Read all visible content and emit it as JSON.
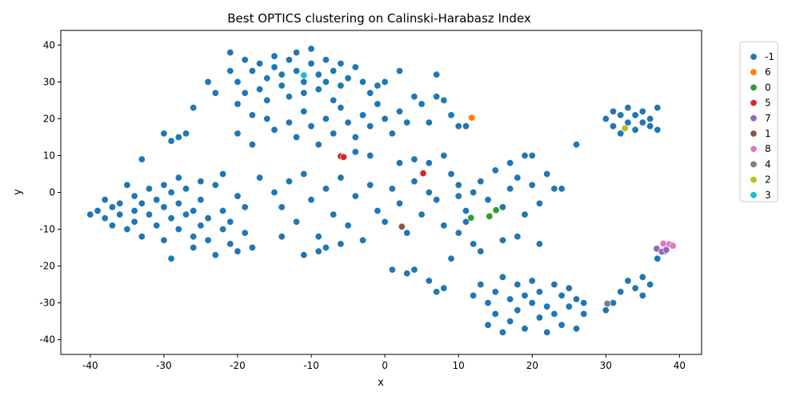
{
  "chart_data": {
    "type": "scatter",
    "title": "Best OPTICS clustering on Calinski-Harabasz Index",
    "xlabel": "x",
    "ylabel": "y",
    "xlim": [
      -44,
      43
    ],
    "ylim": [
      -44,
      44
    ],
    "xticks": [
      -40,
      -30,
      -20,
      -10,
      0,
      10,
      20,
      30,
      40
    ],
    "yticks": [
      -40,
      -30,
      -20,
      -10,
      0,
      10,
      20,
      30,
      40
    ],
    "grid": false,
    "legend_position": "upper-right-outside",
    "series": [
      {
        "name": "-1",
        "color": "#1f77b4",
        "points": [
          [
            -40,
            -6
          ],
          [
            -39,
            -5
          ],
          [
            -38,
            -2
          ],
          [
            -38,
            -7
          ],
          [
            -37,
            -4
          ],
          [
            -37,
            -9
          ],
          [
            -36,
            -3
          ],
          [
            -36,
            -6
          ],
          [
            -35,
            -10
          ],
          [
            -35,
            2
          ],
          [
            -34,
            -1
          ],
          [
            -34,
            -5
          ],
          [
            -34,
            -8
          ],
          [
            -33,
            -12
          ],
          [
            -33,
            -3
          ],
          [
            -32,
            -6
          ],
          [
            -32,
            1
          ],
          [
            -31,
            -9
          ],
          [
            -31,
            -2
          ],
          [
            -30,
            -4
          ],
          [
            -30,
            2
          ],
          [
            -30,
            -13
          ],
          [
            -29,
            -7
          ],
          [
            -29,
            0
          ],
          [
            -29,
            -18
          ],
          [
            -28,
            -10
          ],
          [
            -28,
            -3
          ],
          [
            -28,
            4
          ],
          [
            -27,
            -6
          ],
          [
            -27,
            1
          ],
          [
            -26,
            -12
          ],
          [
            -26,
            -5
          ],
          [
            -26,
            -15
          ],
          [
            -25,
            -9
          ],
          [
            -25,
            -2
          ],
          [
            -25,
            3
          ],
          [
            -24,
            -13
          ],
          [
            -24,
            -7
          ],
          [
            -23,
            -17
          ],
          [
            -23,
            2
          ],
          [
            -22,
            -5
          ],
          [
            -22,
            -10
          ],
          [
            -22,
            5
          ],
          [
            -21,
            -14
          ],
          [
            -21,
            -8
          ],
          [
            -20,
            -1
          ],
          [
            -20,
            -16
          ],
          [
            -19,
            -4
          ],
          [
            -19,
            -11
          ],
          [
            -18,
            -15
          ],
          [
            -30,
            16
          ],
          [
            -29,
            14
          ],
          [
            -28,
            15
          ],
          [
            -27,
            16
          ],
          [
            -26,
            23
          ],
          [
            -33,
            9
          ],
          [
            -24,
            30
          ],
          [
            -23,
            27
          ],
          [
            -21,
            38
          ],
          [
            -21,
            33
          ],
          [
            -20,
            30
          ],
          [
            -20,
            24
          ],
          [
            -19,
            36
          ],
          [
            -19,
            27
          ],
          [
            -18,
            33
          ],
          [
            -18,
            21
          ],
          [
            -17,
            28
          ],
          [
            -17,
            35
          ],
          [
            -16,
            31
          ],
          [
            -16,
            25
          ],
          [
            -15,
            37
          ],
          [
            -15,
            34
          ],
          [
            -14,
            29
          ],
          [
            -14,
            32
          ],
          [
            -13,
            26
          ],
          [
            -13,
            36
          ],
          [
            -12,
            38
          ],
          [
            -12,
            33
          ],
          [
            -11,
            30
          ],
          [
            -11,
            27
          ],
          [
            -10,
            35
          ],
          [
            -10,
            39
          ],
          [
            -9,
            32
          ],
          [
            -9,
            28
          ],
          [
            -8,
            36
          ],
          [
            -8,
            30
          ],
          [
            -7,
            33
          ],
          [
            -7,
            25
          ],
          [
            -6,
            35
          ],
          [
            -6,
            29
          ],
          [
            -5,
            31
          ],
          [
            -4,
            34
          ],
          [
            -3,
            30
          ],
          [
            -2,
            27
          ],
          [
            -1,
            29
          ],
          [
            0,
            30
          ],
          [
            2,
            33
          ],
          [
            -16,
            20
          ],
          [
            -15,
            17
          ],
          [
            -13,
            19
          ],
          [
            -12,
            15
          ],
          [
            -11,
            22
          ],
          [
            -10,
            18
          ],
          [
            -9,
            13
          ],
          [
            -8,
            20
          ],
          [
            -7,
            16
          ],
          [
            -6,
            23
          ],
          [
            -5,
            19
          ],
          [
            -4,
            15
          ],
          [
            -3,
            21
          ],
          [
            -2,
            18
          ],
          [
            -1,
            24
          ],
          [
            0,
            20
          ],
          [
            1,
            16
          ],
          [
            2,
            22
          ],
          [
            3,
            19
          ],
          [
            4,
            26
          ],
          [
            5,
            24
          ],
          [
            6,
            19
          ],
          [
            7,
            26
          ],
          [
            8,
            25
          ],
          [
            9,
            21
          ],
          [
            10,
            18
          ],
          [
            11,
            18
          ],
          [
            7,
            32
          ],
          [
            -18,
            13
          ],
          [
            -20,
            16
          ],
          [
            -17,
            4
          ],
          [
            -15,
            0
          ],
          [
            -14,
            -4
          ],
          [
            -13,
            3
          ],
          [
            -12,
            -8
          ],
          [
            -11,
            5
          ],
          [
            -10,
            -2
          ],
          [
            -9,
            -12
          ],
          [
            -8,
            1
          ],
          [
            -7,
            -6
          ],
          [
            -6,
            4
          ],
          [
            -5,
            -9
          ],
          [
            -4,
            -1
          ],
          [
            -3,
            -13
          ],
          [
            -2,
            2
          ],
          [
            -1,
            -5
          ],
          [
            0,
            -8
          ],
          [
            1,
            1
          ],
          [
            2,
            -3
          ],
          [
            3,
            -11
          ],
          [
            4,
            3
          ],
          [
            5,
            -6
          ],
          [
            6,
            0
          ],
          [
            7,
            -2
          ],
          [
            8,
            -9
          ],
          [
            9,
            5
          ],
          [
            10,
            2
          ],
          [
            8,
            10
          ],
          [
            6,
            8
          ],
          [
            4,
            9
          ],
          [
            2,
            8
          ],
          [
            -2,
            10
          ],
          [
            -4,
            11
          ],
          [
            -6,
            -14
          ],
          [
            -9,
            -16
          ],
          [
            -11,
            -17
          ],
          [
            -14,
            -12
          ],
          [
            -8,
            -15
          ],
          [
            1,
            -21
          ],
          [
            3,
            -22
          ],
          [
            4,
            -21
          ],
          [
            6,
            -24
          ],
          [
            7,
            -27
          ],
          [
            8,
            -26
          ],
          [
            9,
            -18
          ],
          [
            10,
            -11
          ],
          [
            11,
            -8
          ],
          [
            12,
            -14
          ],
          [
            11,
            -5
          ],
          [
            13,
            -16
          ],
          [
            10,
            -1
          ],
          [
            12,
            0
          ],
          [
            13,
            3
          ],
          [
            14,
            -2
          ],
          [
            15,
            6
          ],
          [
            16,
            -4
          ],
          [
            17,
            1
          ],
          [
            18,
            4
          ],
          [
            19,
            -6
          ],
          [
            20,
            2
          ],
          [
            21,
            -3
          ],
          [
            22,
            5
          ],
          [
            23,
            1
          ],
          [
            24,
            1
          ],
          [
            17,
            8
          ],
          [
            19,
            10
          ],
          [
            20,
            10
          ],
          [
            16,
            -13
          ],
          [
            18,
            -12
          ],
          [
            21,
            -14
          ],
          [
            13,
            -25
          ],
          [
            14,
            -30
          ],
          [
            14,
            -36
          ],
          [
            15,
            -27
          ],
          [
            15,
            -33
          ],
          [
            16,
            -23
          ],
          [
            16,
            -38
          ],
          [
            17,
            -29
          ],
          [
            17,
            -35
          ],
          [
            18,
            -25
          ],
          [
            18,
            -32
          ],
          [
            19,
            -28
          ],
          [
            19,
            -37
          ],
          [
            20,
            -24
          ],
          [
            20,
            -30
          ],
          [
            21,
            -34
          ],
          [
            21,
            -27
          ],
          [
            22,
            -38
          ],
          [
            22,
            -31
          ],
          [
            23,
            -25
          ],
          [
            23,
            -33
          ],
          [
            24,
            -28
          ],
          [
            24,
            -36
          ],
          [
            25,
            -26
          ],
          [
            25,
            -31
          ],
          [
            26,
            -29
          ],
          [
            26,
            -37
          ],
          [
            27,
            -30
          ],
          [
            27,
            -33
          ],
          [
            12,
            -28
          ],
          [
            30,
            20
          ],
          [
            31,
            18
          ],
          [
            31,
            22
          ],
          [
            32,
            16
          ],
          [
            32,
            21
          ],
          [
            33,
            19
          ],
          [
            33,
            23
          ],
          [
            34,
            17
          ],
          [
            34,
            21
          ],
          [
            35,
            19
          ],
          [
            35,
            22
          ],
          [
            36,
            18
          ],
          [
            36,
            20
          ],
          [
            37,
            23
          ],
          [
            37,
            17
          ],
          [
            26,
            13
          ],
          [
            30,
            -32
          ],
          [
            31,
            -30
          ],
          [
            32,
            -27
          ],
          [
            33,
            -24
          ],
          [
            34,
            -26
          ],
          [
            35,
            -23
          ],
          [
            35,
            -28
          ],
          [
            36,
            -25
          ],
          [
            37,
            -18
          ],
          [
            38,
            -16
          ]
        ]
      },
      {
        "name": "6",
        "color": "#ff7f0e",
        "points": [
          [
            11.8,
            20.3
          ]
        ]
      },
      {
        "name": "0",
        "color": "#2ca02c",
        "points": [
          [
            14.2,
            -6.5
          ],
          [
            15.1,
            -4.8
          ],
          [
            11.7,
            -6.9
          ]
        ]
      },
      {
        "name": "5",
        "color": "#d62728",
        "points": [
          [
            -6,
            9.8
          ],
          [
            -5.6,
            9.6
          ],
          [
            5.2,
            5.2
          ]
        ]
      },
      {
        "name": "7",
        "color": "#9467bd",
        "points": [
          [
            36.9,
            -15.3
          ],
          [
            37.6,
            -16.1
          ],
          [
            38.2,
            -15.6
          ]
        ]
      },
      {
        "name": "1",
        "color": "#8c564b",
        "points": [
          [
            2.3,
            -9.3
          ]
        ]
      },
      {
        "name": "8",
        "color": "#e377c2",
        "points": [
          [
            37.8,
            -13.9
          ],
          [
            38.6,
            -14.1
          ],
          [
            39.1,
            -14.5
          ]
        ]
      },
      {
        "name": "4",
        "color": "#7f7f7f",
        "points": [
          [
            30.2,
            -30.2
          ]
        ]
      },
      {
        "name": "2",
        "color": "#bcbd22",
        "points": [
          [
            32.6,
            17.4
          ]
        ]
      },
      {
        "name": "3",
        "color": "#17becf",
        "points": [
          [
            -11,
            31.8
          ]
        ]
      }
    ]
  }
}
